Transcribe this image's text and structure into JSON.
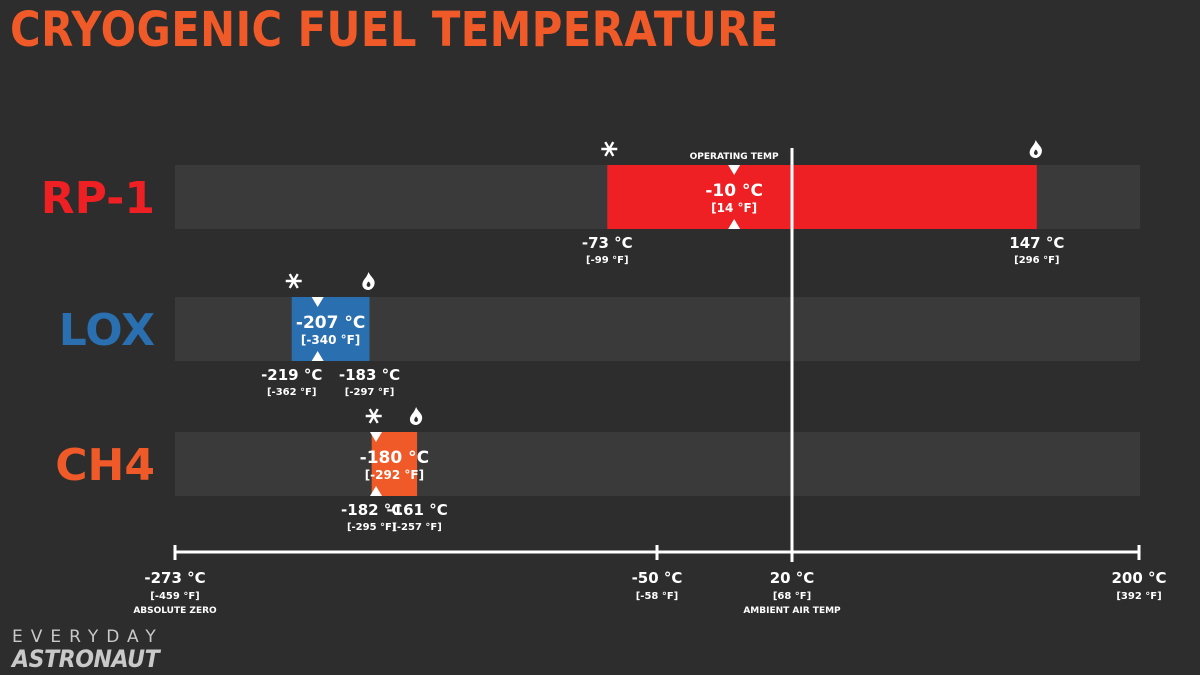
{
  "title": "CRYOGENIC FUEL TEMPERATURE",
  "colors": {
    "background": "#2d2d2d",
    "band": "#3a3a3a",
    "title": "#f05a28",
    "rp1": "#ee2024",
    "lox": "#2a6fb0",
    "ch4": "#f05a28",
    "axis": "#ffffff"
  },
  "chart_data": {
    "type": "range-bar",
    "title": "CRYOGENIC FUEL TEMPERATURE",
    "unit": "°C",
    "xlim": [
      -273,
      200
    ],
    "reference_line": {
      "value_c": 20,
      "label": "20 °C",
      "label_f": "[68 °F]",
      "caption": "AMBIENT AIR TEMP"
    },
    "axis_ticks": [
      {
        "value_c": -273,
        "label": "-273 °C",
        "label_f": "[-459 °F]",
        "caption": "ABSOLUTE ZERO"
      },
      {
        "value_c": -50,
        "label": "-50 °C",
        "label_f": "[-58 °F]",
        "caption": ""
      },
      {
        "value_c": 20,
        "label": "20 °C",
        "label_f": "[68 °F]",
        "caption": "AMBIENT AIR TEMP"
      },
      {
        "value_c": 200,
        "label": "200 °C",
        "label_f": "[392 °F]",
        "caption": ""
      }
    ],
    "series": [
      {
        "name": "RP-1",
        "min_c": -73,
        "min_label": "-73 °C",
        "min_f": "[-99 °F]",
        "max_c": 147,
        "max_label": "147 °C",
        "max_f": "[296 °F]",
        "operating_c": -10,
        "operating_label": "-10 °C",
        "operating_f": "[14 °F]",
        "operating_caption": "OPERATING TEMP",
        "color": "#ee2024"
      },
      {
        "name": "LOX",
        "min_c": -219,
        "min_label": "-219 °C",
        "min_f": "[-362 °F]",
        "max_c": -183,
        "max_label": "-183 °C",
        "max_f": "[-297 °F]",
        "operating_c": -207,
        "operating_label": "-207 °C",
        "operating_f": "[-340 °F]",
        "operating_caption": "",
        "color": "#2a6fb0"
      },
      {
        "name": "CH4",
        "min_c": -182,
        "min_label": "-182 °C",
        "min_f": "[-295 °F]",
        "max_c": -161,
        "max_label": "-161 °C",
        "max_f": "[-257 °F]",
        "operating_c": -180,
        "operating_label": "-180 °C",
        "operating_f": "[-292 °F]",
        "operating_caption": "",
        "color": "#f05a28"
      }
    ]
  },
  "logo": {
    "top": "EVERYDAY",
    "bottom": "ASTRONAUT"
  }
}
